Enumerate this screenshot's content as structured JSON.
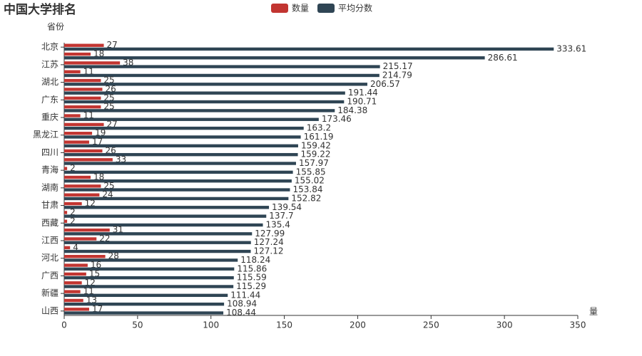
{
  "chart_data": {
    "type": "hbar",
    "title": "中国大学排名",
    "y_label": "省份",
    "x_label": "量",
    "categories": [
      "北京",
      null,
      "江苏",
      null,
      "湖北",
      null,
      "广东",
      null,
      "重庆",
      null,
      "黑龙江",
      null,
      "四川",
      null,
      "青海",
      null,
      "湖南",
      null,
      "甘肃",
      null,
      "西藏",
      null,
      "江西",
      null,
      "河北",
      null,
      "广西",
      null,
      "新疆",
      null,
      "山西"
    ],
    "series": [
      {
        "name": "数量",
        "color": "#c23531",
        "values": [
          27,
          18,
          38,
          11,
          25,
          26,
          25,
          25,
          11,
          27,
          19,
          17,
          26,
          33,
          2,
          18,
          25,
          24,
          12,
          2,
          2,
          31,
          22,
          4,
          28,
          16,
          15,
          12,
          11,
          13,
          17
        ]
      },
      {
        "name": "平均分数",
        "color": "#2f4554",
        "values": [
          333.61,
          286.61,
          215.17,
          214.79,
          206.57,
          191.44,
          190.71,
          184.38,
          173.46,
          163.2,
          161.19,
          159.42,
          159.22,
          157.97,
          155.85,
          155.02,
          153.84,
          152.82,
          139.54,
          137.7,
          135.4,
          127.99,
          127.24,
          127.12,
          118.24,
          115.86,
          115.59,
          115.29,
          111.44,
          108.94,
          108.44
        ]
      }
    ],
    "xlim": [
      0,
      350
    ],
    "xticks": [
      0,
      50,
      100,
      150,
      200,
      250,
      300,
      350
    ]
  }
}
